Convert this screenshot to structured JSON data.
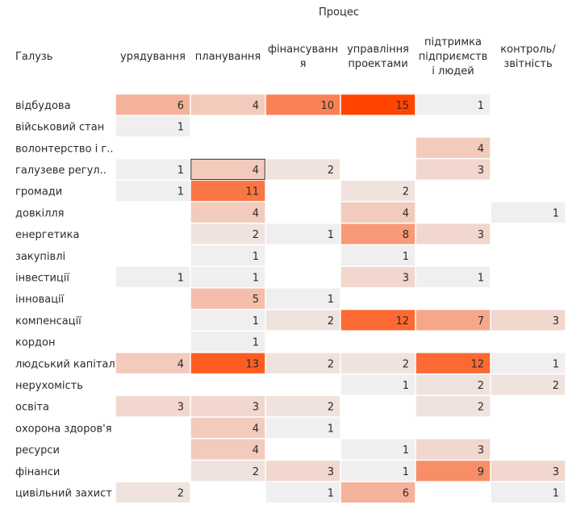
{
  "chart_data": {
    "type": "heatmap",
    "column_title": "Процес",
    "row_header": "Галузь",
    "columns": [
      [
        "урядування"
      ],
      [
        "планування"
      ],
      [
        "фінансуванн",
        "я"
      ],
      [
        "управління",
        "проектами"
      ],
      [
        "підтримка",
        "підприємств",
        "і людей"
      ],
      [
        "контроль/",
        "звітність"
      ]
    ],
    "rows": [
      "відбудова",
      "військовий стан",
      "волонтерство і г..",
      "галузеве регул..",
      "громади",
      "довкілля",
      "енергетика",
      "закупівлі",
      "інвестиції",
      "інновації",
      "компенсації",
      "кордон",
      "людський капітал",
      "нерухомість",
      "освіта",
      "охорона здоров'я",
      "ресурси",
      "фінанси",
      "цивільний захист"
    ],
    "values": [
      [
        6,
        4,
        10,
        15,
        1,
        null
      ],
      [
        1,
        null,
        null,
        null,
        null,
        null
      ],
      [
        null,
        null,
        null,
        null,
        4,
        null
      ],
      [
        1,
        4,
        2,
        null,
        3,
        null
      ],
      [
        1,
        11,
        null,
        2,
        null,
        null
      ],
      [
        null,
        4,
        null,
        4,
        null,
        1
      ],
      [
        null,
        2,
        1,
        8,
        3,
        null
      ],
      [
        null,
        1,
        null,
        1,
        null,
        null
      ],
      [
        1,
        1,
        null,
        3,
        1,
        null
      ],
      [
        null,
        5,
        1,
        null,
        null,
        null
      ],
      [
        null,
        1,
        2,
        12,
        7,
        3
      ],
      [
        null,
        1,
        null,
        null,
        null,
        null
      ],
      [
        4,
        13,
        2,
        2,
        12,
        1
      ],
      [
        null,
        null,
        null,
        1,
        2,
        2
      ],
      [
        3,
        3,
        2,
        null,
        2,
        null
      ],
      [
        null,
        4,
        1,
        null,
        null,
        null
      ],
      [
        null,
        4,
        null,
        1,
        3,
        null
      ],
      [
        null,
        2,
        3,
        1,
        9,
        3
      ],
      [
        2,
        null,
        1,
        6,
        null,
        1
      ]
    ],
    "value_range": [
      1,
      15
    ],
    "color_low": "#efefef",
    "color_high": "#ff4500",
    "highlighted_cell": {
      "row": "галузеве регул..",
      "column": "планування"
    }
  }
}
